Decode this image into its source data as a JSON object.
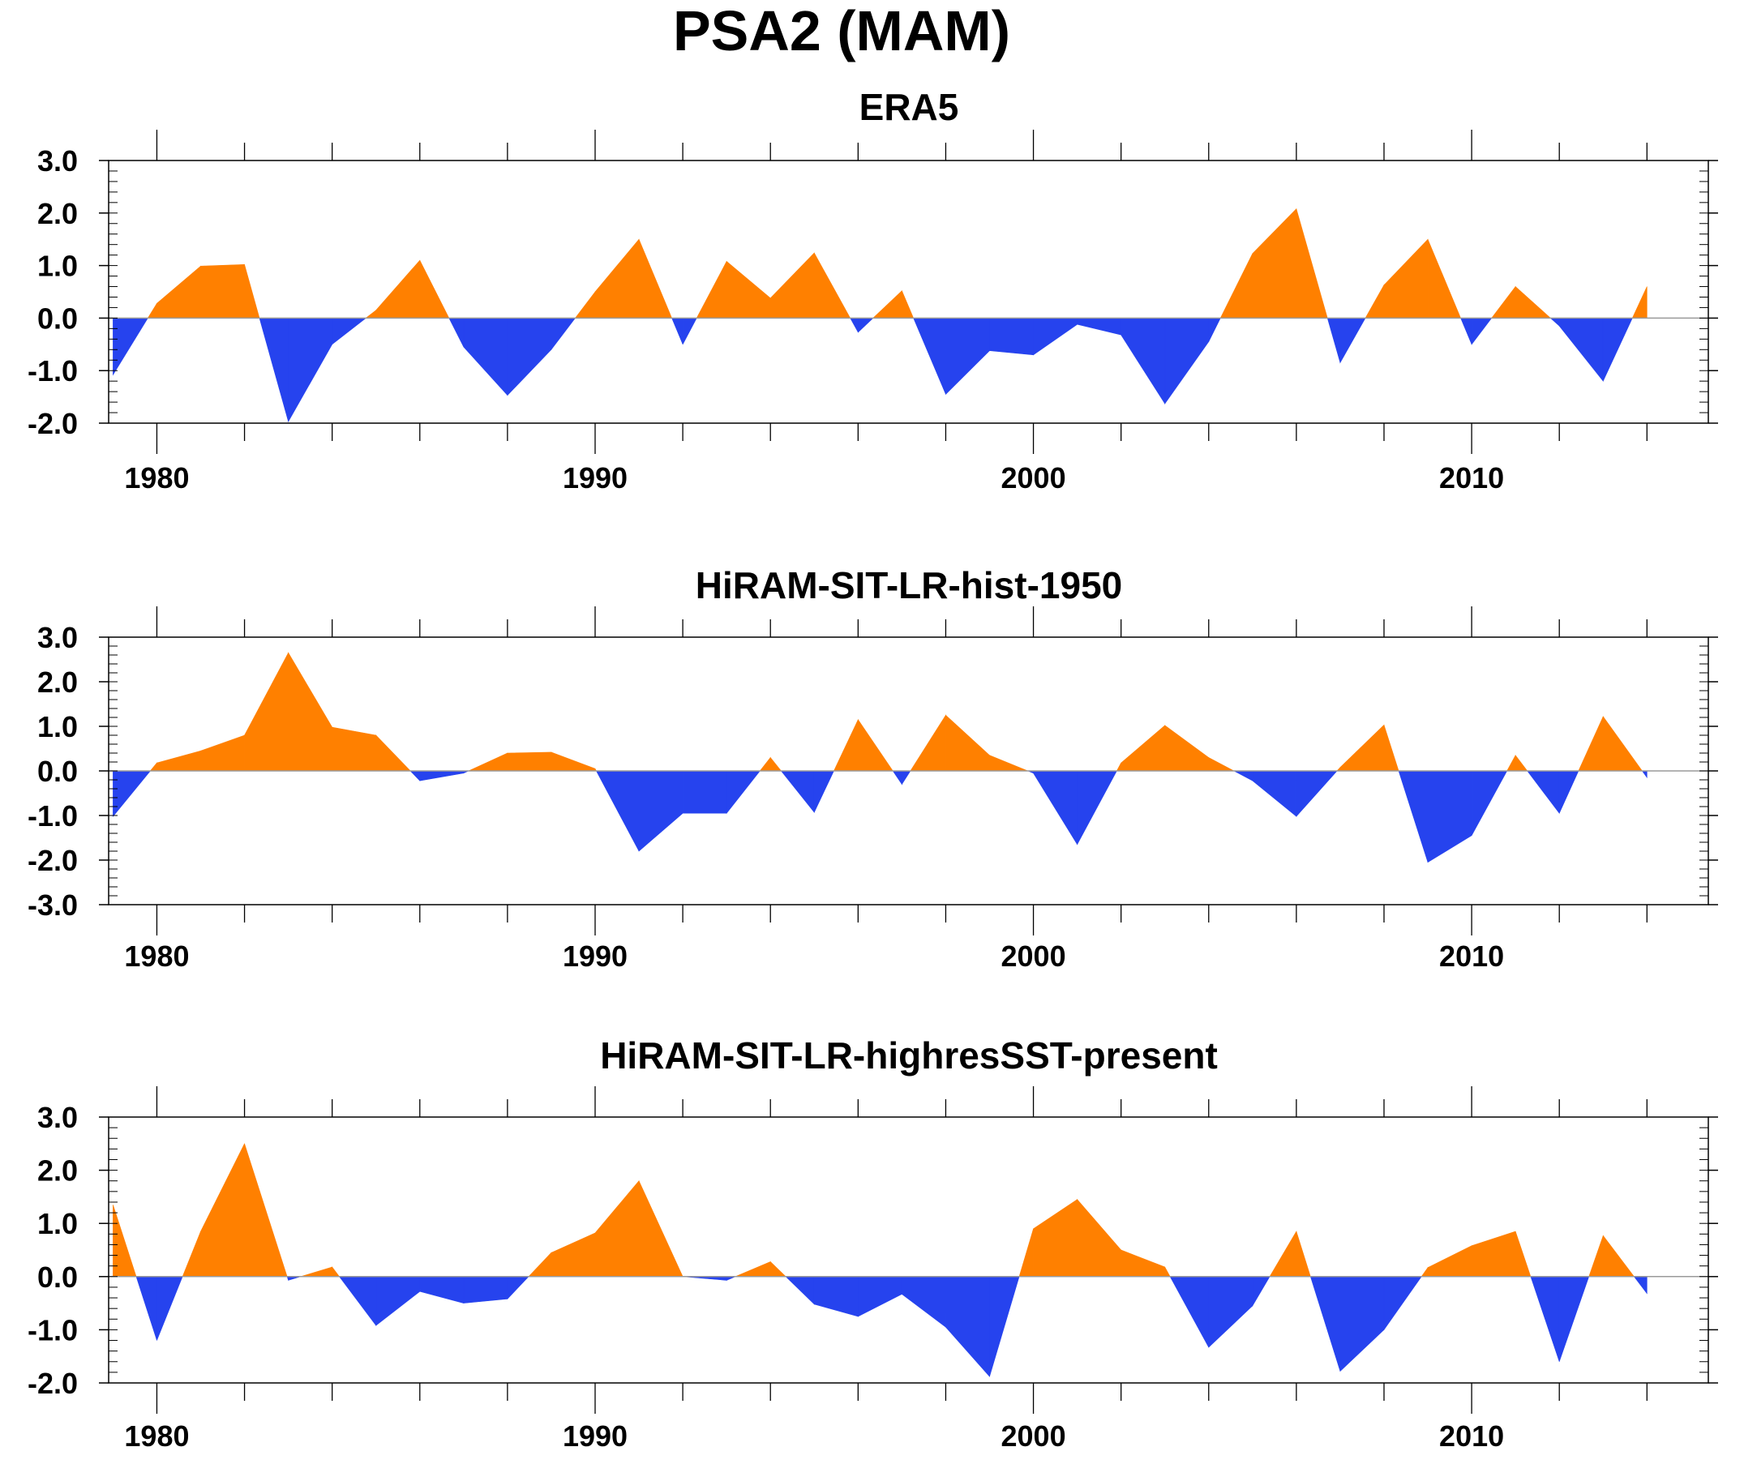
{
  "title": "PSA2 (MAM)",
  "colors": {
    "positive": "#ff8000",
    "negative": "#2643ee",
    "axis": "#000000",
    "zero_line": "#9a9a9a"
  },
  "chart_data": [
    {
      "type": "area",
      "title": "ERA5",
      "xlim": [
        1978.9,
        2015.4
      ],
      "ylim": [
        -2.0,
        3.0
      ],
      "yticks": [
        "3.0",
        "2.0",
        "1.0",
        "0.0",
        "-1.0",
        "-2.0"
      ],
      "xticks": [
        "1980",
        "1990",
        "2000",
        "2010"
      ],
      "x": [
        1979,
        1980,
        1981,
        1982,
        1983,
        1984,
        1985,
        1986,
        1987,
        1988,
        1989,
        1990,
        1991,
        1992,
        1993,
        1994,
        1995,
        1996,
        1997,
        1998,
        1999,
        2000,
        2001,
        2002,
        2003,
        2004,
        2005,
        2006,
        2007,
        2008,
        2009,
        2010,
        2011,
        2012,
        2013,
        2014
      ],
      "values": [
        -1.08,
        0.28,
        0.99,
        1.02,
        -1.97,
        -0.5,
        0.15,
        1.1,
        -0.55,
        -1.47,
        -0.6,
        0.5,
        1.5,
        -0.5,
        1.08,
        0.38,
        1.24,
        -0.27,
        0.52,
        -1.45,
        -0.62,
        -0.7,
        -0.12,
        -0.32,
        -1.63,
        -0.45,
        1.23,
        2.08,
        -0.85,
        0.63,
        1.5,
        -0.5,
        0.6,
        -0.15,
        -1.2,
        0.6
      ]
    },
    {
      "type": "area",
      "title": "HiRAM-SIT-LR-hist-1950",
      "xlim": [
        1978.9,
        2015.4
      ],
      "ylim": [
        -3.0,
        3.0
      ],
      "yticks": [
        "3.0",
        "2.0",
        "1.0",
        "0.0",
        "-1.0",
        "-2.0",
        "-3.0"
      ],
      "xticks": [
        "1980",
        "1990",
        "2000",
        "2010"
      ],
      "x": [
        1979,
        1980,
        1981,
        1982,
        1983,
        1984,
        1985,
        1986,
        1987,
        1988,
        1989,
        1990,
        1991,
        1992,
        1993,
        1994,
        1995,
        1996,
        1997,
        1998,
        1999,
        2000,
        2001,
        2002,
        2003,
        2004,
        2005,
        2006,
        2007,
        2008,
        2009,
        2010,
        2011,
        2012,
        2013,
        2014
      ],
      "values": [
        -1.02,
        0.18,
        0.45,
        0.8,
        2.65,
        0.98,
        0.8,
        -0.22,
        -0.05,
        0.4,
        0.42,
        0.05,
        -1.8,
        -0.95,
        -0.95,
        0.3,
        -0.93,
        1.15,
        -0.3,
        1.25,
        0.35,
        -0.05,
        -1.65,
        0.18,
        1.02,
        0.3,
        -0.22,
        -1.02,
        0.08,
        1.03,
        -2.05,
        -1.45,
        0.35,
        -0.95,
        1.22,
        -0.15
      ]
    },
    {
      "type": "area",
      "title": "HiRAM-SIT-LR-highresSST-present",
      "xlim": [
        1978.9,
        2015.4
      ],
      "ylim": [
        -2.0,
        3.0
      ],
      "yticks": [
        "3.0",
        "2.0",
        "1.0",
        "0.0",
        "-1.0",
        "-2.0"
      ],
      "xticks": [
        "1980",
        "1990",
        "2000",
        "2010"
      ],
      "x": [
        1979,
        1980,
        1981,
        1982,
        1983,
        1984,
        1985,
        1986,
        1987,
        1988,
        1989,
        1990,
        1991,
        1992,
        1993,
        1994,
        1995,
        1996,
        1997,
        1998,
        1999,
        2000,
        2001,
        2002,
        2003,
        2004,
        2005,
        2006,
        2007,
        2008,
        2009,
        2010,
        2011,
        2012,
        2013,
        2014
      ],
      "values": [
        1.35,
        -1.2,
        0.85,
        2.5,
        -0.07,
        0.18,
        -0.92,
        -0.28,
        -0.5,
        -0.42,
        0.45,
        0.82,
        1.8,
        0.0,
        -0.07,
        0.28,
        -0.52,
        -0.75,
        -0.33,
        -0.95,
        -1.88,
        0.9,
        1.45,
        0.5,
        0.18,
        -1.33,
        -0.55,
        0.85,
        -1.78,
        -1.0,
        0.17,
        0.58,
        0.85,
        -1.6,
        0.77,
        -0.32
      ]
    }
  ]
}
